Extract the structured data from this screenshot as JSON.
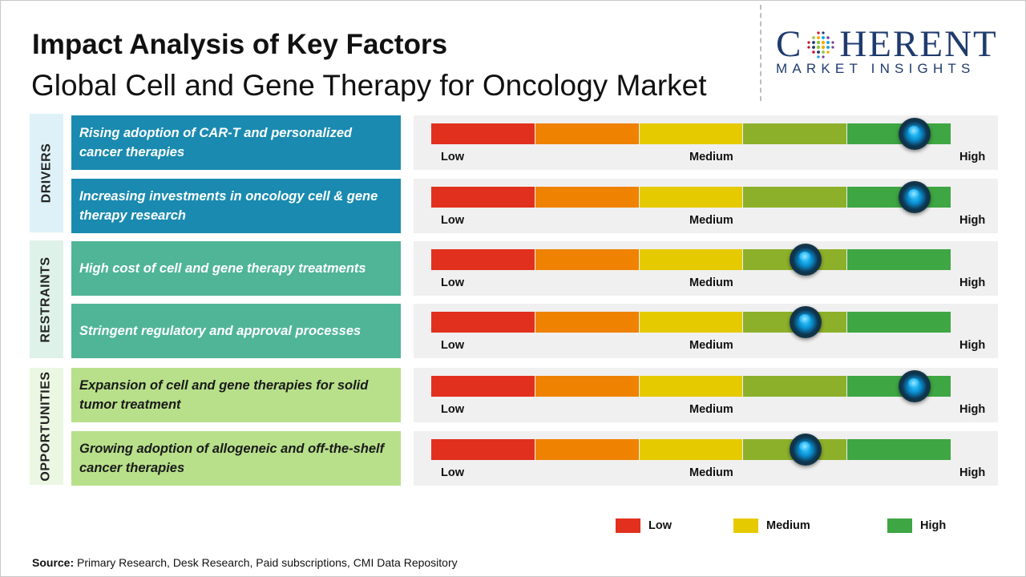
{
  "title": "Impact Analysis of Key Factors",
  "subtitle": "Global Cell and Gene Therapy for Oncology Market",
  "logo": {
    "word_before": "C",
    "word_after": "HERENT",
    "tagline": "MARKET INSIGHTS"
  },
  "colors": {
    "drivers_bg": "#1a8ab0",
    "restraints_bg": "#4fb596",
    "opportunities_bg": "#b8e08a",
    "low": "#e2301e",
    "medium": "#e6ca00",
    "high": "#3ea643",
    "segments": [
      "#e2301e",
      "#ef8200",
      "#e6ca00",
      "#8db02a",
      "#3ea643"
    ]
  },
  "groups": [
    {
      "label": "DRIVERS",
      "label_bg": "#dff1f8"
    },
    {
      "label": "RESTRAINTS",
      "label_bg": "#dff2ea"
    },
    {
      "label": "OPPORTUNITIES",
      "label_bg": "#ecf7e3"
    }
  ],
  "gauge_labels": {
    "low": "Low",
    "medium": "Medium",
    "high": "High"
  },
  "legend": [
    {
      "label": "Low",
      "color": "#e2301e"
    },
    {
      "label": "Medium",
      "color": "#e6ca00"
    },
    {
      "label": "High",
      "color": "#3ea643"
    }
  ],
  "source": {
    "label": "Source:",
    "text": " Primary Research, Desk Research, Paid subscriptions, CMI Data Repository"
  },
  "chart_data": {
    "type": "gauge",
    "scale": [
      "Low",
      "Medium",
      "High"
    ],
    "factors": [
      {
        "group": "DRIVERS",
        "text": "Rising adoption of CAR-T and personalized cancer therapies",
        "impact": 0.93
      },
      {
        "group": "DRIVERS",
        "text": "Increasing investments in oncology cell & gene therapy research",
        "impact": 0.93
      },
      {
        "group": "RESTRAINTS",
        "text": "High cost of cell and gene therapy treatments",
        "impact": 0.72
      },
      {
        "group": "RESTRAINTS",
        "text": "Stringent regulatory and approval processes",
        "impact": 0.72
      },
      {
        "group": "OPPORTUNITIES",
        "text": "Expansion of cell and gene therapies for solid tumor treatment",
        "impact": 0.93
      },
      {
        "group": "OPPORTUNITIES",
        "text": "Growing adoption of allogeneic and off-the-shelf cancer therapies",
        "impact": 0.72
      }
    ]
  }
}
